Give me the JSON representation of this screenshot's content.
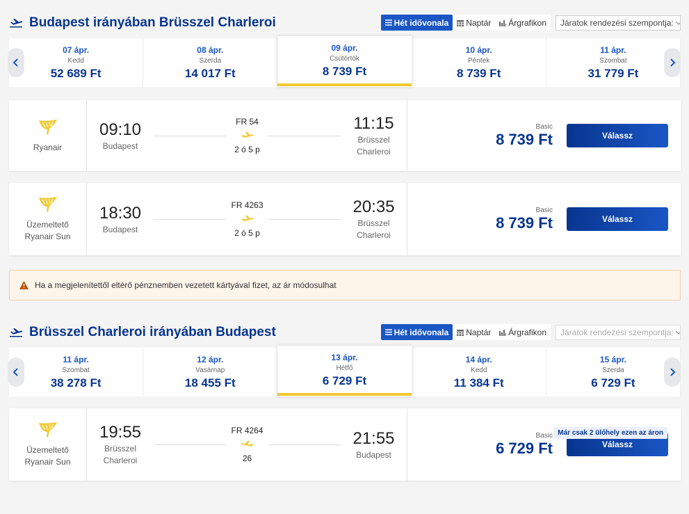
{
  "sections": [
    {
      "title": "Budapest irányában Brüsszel Charleroi",
      "tabs": [
        "Hét idővonala",
        "Naptár",
        "Árgrafikon"
      ],
      "active_tab": 0,
      "sort_label": "Járatok rendezési szempontja:",
      "sort_enabled": true,
      "selected_date": 2,
      "dates": [
        {
          "date": "07 ápr.",
          "day": "Kedd",
          "price": "52 689 Ft"
        },
        {
          "date": "08 ápr.",
          "day": "Szerda",
          "price": "14 017 Ft"
        },
        {
          "date": "09 ápr.",
          "day": "Csütörtök",
          "price": "8 739 Ft"
        },
        {
          "date": "10 ápr.",
          "day": "Péntek",
          "price": "8 739 Ft"
        },
        {
          "date": "11 ápr.",
          "day": "Szombat",
          "price": "31 779 Ft"
        }
      ],
      "flights": [
        {
          "operator": [
            "Ryanair"
          ],
          "dep_time": "09:10",
          "dep_city": [
            "Budapest"
          ],
          "flight_no": "FR 54",
          "duration": "2 ó 5 p",
          "arr_time": "11:15",
          "arr_city": [
            "Brüsszel",
            "Charleroi"
          ],
          "fare": "Basic",
          "price": "8 739 Ft",
          "button": "Válassz"
        },
        {
          "operator": [
            "Üzemeltető",
            "Ryanair Sun"
          ],
          "dep_time": "18:30",
          "dep_city": [
            "Budapest"
          ],
          "flight_no": "FR 4263",
          "duration": "2 ó 5 p",
          "arr_time": "20:35",
          "arr_city": [
            "Brüsszel",
            "Charleroi"
          ],
          "fare": "Basic",
          "price": "8 739 Ft",
          "button": "Válassz"
        }
      ]
    },
    {
      "title": "Brüsszel Charleroi irányában Budapest",
      "tabs": [
        "Hét idővonala",
        "Naptár",
        "Árgrafikon"
      ],
      "active_tab": 0,
      "sort_label": "Járatok rendezési szempontja:",
      "sort_enabled": false,
      "selected_date": 2,
      "dates": [
        {
          "date": "11 ápr.",
          "day": "Szombat",
          "price": "38 278 Ft"
        },
        {
          "date": "12 ápr.",
          "day": "Vasárnap",
          "price": "18 455 Ft"
        },
        {
          "date": "13 ápr.",
          "day": "Hétfő",
          "price": "6 729 Ft"
        },
        {
          "date": "14 ápr.",
          "day": "Kedd",
          "price": "11 384 Ft"
        },
        {
          "date": "15 ápr.",
          "day": "Szerda",
          "price": "6 729 Ft"
        }
      ],
      "flights": [
        {
          "operator": [
            "Üzemeltető",
            "Ryanair Sun"
          ],
          "dep_time": "19:55",
          "dep_city": [
            "Brüsszel",
            "Charleroi"
          ],
          "flight_no": "FR 4264",
          "duration": "26",
          "arr_time": "21:55",
          "arr_city": [
            "Budapest"
          ],
          "fare": "Basic",
          "price": "6 729 Ft",
          "button": "Válassz",
          "badge": "Már csak 2 ülőhely ezen az áron"
        }
      ]
    }
  ],
  "notice": "Ha a megjelenítettől eltérő pénznemben vezetett kártyával fizet, az ár módosulhat"
}
